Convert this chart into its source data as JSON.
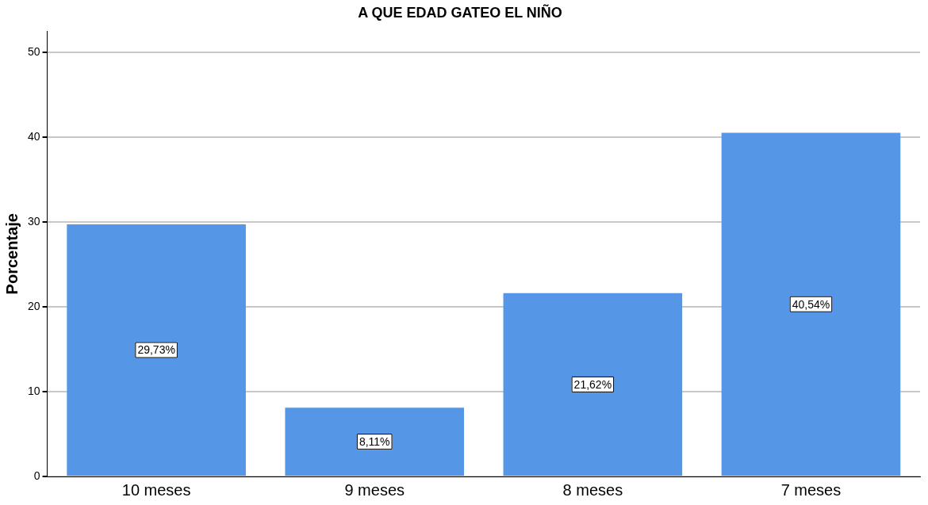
{
  "chart_data": {
    "type": "bar",
    "title": "A QUE EDAD GATEO EL NIÑO",
    "ylabel": "Porcentaje",
    "categories": [
      "10 meses",
      "9 meses",
      "8 meses",
      "7 meses"
    ],
    "values": [
      29.73,
      8.11,
      21.62,
      40.54
    ],
    "value_labels": [
      "29,73%",
      "8,11%",
      "21,62%",
      "40,54%"
    ],
    "color": "#5596e6",
    "ylim": [
      0,
      52.5
    ],
    "yticks": [
      0,
      10,
      20,
      30,
      40,
      50
    ],
    "grid": "y"
  }
}
